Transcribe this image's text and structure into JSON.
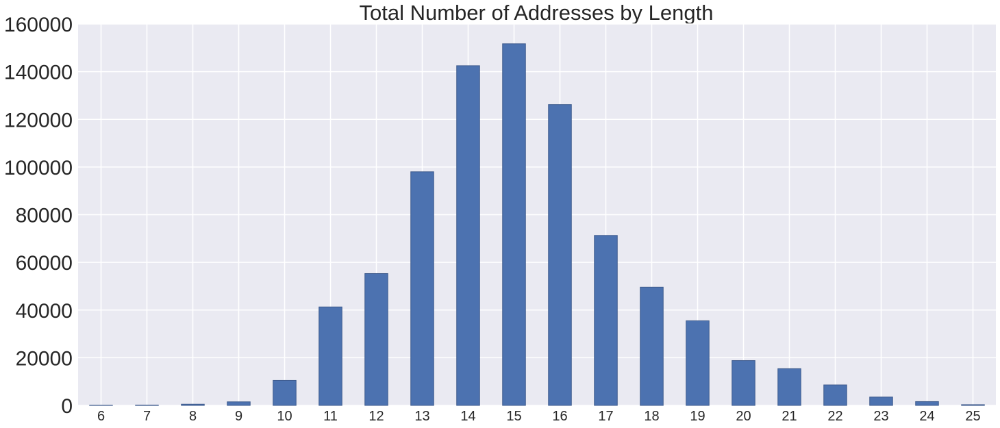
{
  "chart_data": {
    "type": "bar",
    "title": "Total Number of Addresses by Length",
    "xlabel": "",
    "ylabel": "",
    "categories": [
      "6",
      "7",
      "8",
      "9",
      "10",
      "11",
      "12",
      "13",
      "14",
      "15",
      "16",
      "17",
      "18",
      "19",
      "20",
      "21",
      "22",
      "23",
      "24",
      "25"
    ],
    "values": [
      100,
      150,
      500,
      1500,
      10500,
      41300,
      55300,
      98000,
      142500,
      151700,
      126200,
      71300,
      49600,
      35500,
      18800,
      15400,
      8600,
      3500,
      1600,
      300
    ],
    "ylim": [
      0,
      160000
    ],
    "yticks": [
      "0",
      "20000",
      "40000",
      "60000",
      "80000",
      "100000",
      "120000",
      "140000",
      "160000"
    ],
    "grid": true,
    "colors": {
      "bar": "#4c72b0",
      "bar_edge": "#3d5a8c",
      "background": "#eaeaf2",
      "grid": "#ffffff"
    }
  }
}
